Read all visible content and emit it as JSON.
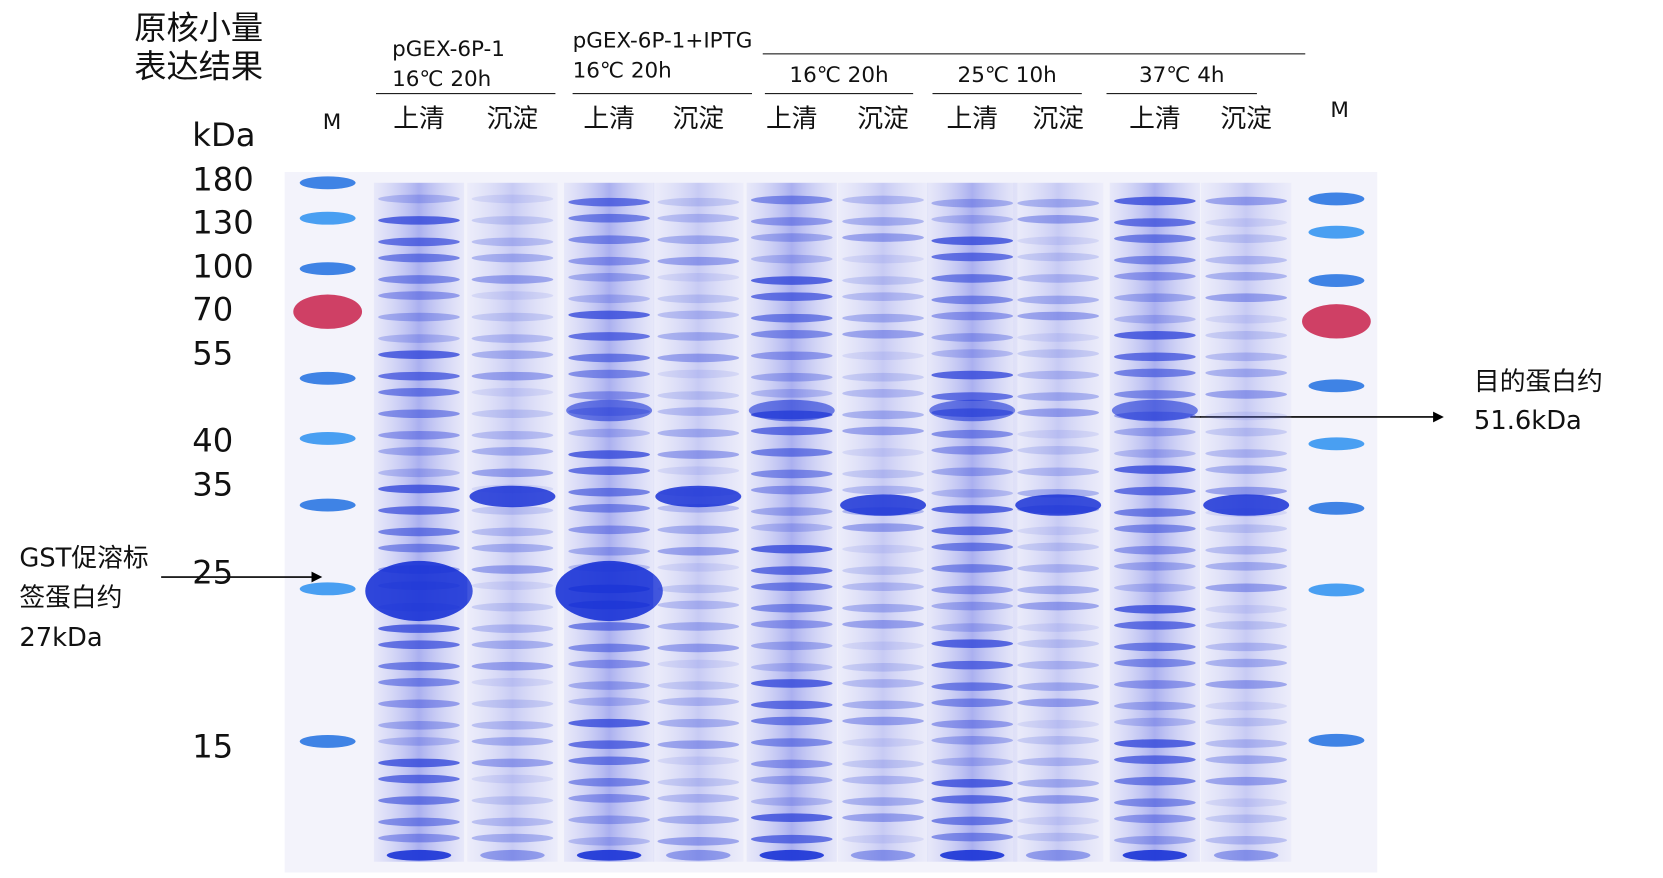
{
  "title": [
    "原核小量",
    "表达结果"
  ],
  "unit": "kDa",
  "marker_label": "M",
  "markers": [
    180,
    130,
    100,
    70,
    55,
    40,
    35,
    25,
    15
  ],
  "groups": [
    {
      "label": [
        "pGEX-6P-1",
        "16℃ 20h"
      ],
      "lanes": [
        "上清",
        "沉淀"
      ]
    },
    {
      "label": [
        "pGEX-6P-1+IPTG",
        "16℃ 20h"
      ],
      "lanes": [
        "上清",
        "沉淀"
      ]
    },
    {
      "label": [
        "16℃ 20h"
      ],
      "lanes": [
        "上清",
        "沉淀"
      ]
    },
    {
      "label": [
        "25℃ 10h"
      ],
      "lanes": [
        "上清",
        "沉淀"
      ]
    },
    {
      "label": [
        "37℃ 4h"
      ],
      "lanes": [
        "上清",
        "沉淀"
      ]
    }
  ],
  "annotations": [
    {
      "lines": [
        "GST促溶标",
        "签蛋白约",
        "27kDa"
      ]
    },
    {
      "lines": [
        "目的蛋白约",
        "51.6kDa"
      ]
    }
  ]
}
